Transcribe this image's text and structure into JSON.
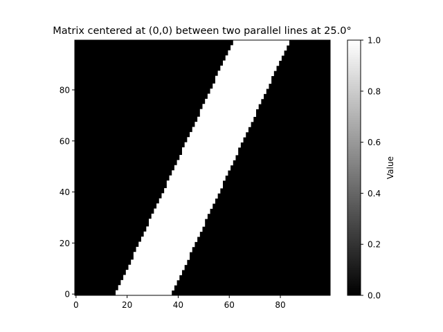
{
  "chart_data": {
    "type": "heatmap",
    "title": "Matrix centered at (0,0) between two parallel lines at 25.0°",
    "xlabel": "",
    "ylabel": "",
    "colorbar_label": "Value",
    "colormap": "gray",
    "colormap_low": "#000000",
    "colormap_high": "#ffffff",
    "grid": false,
    "origin": "lower",
    "rows": 100,
    "cols": 100,
    "xlim": [
      0,
      99
    ],
    "ylim": [
      0,
      99
    ],
    "vmin": 0.0,
    "vmax": 1.0,
    "band": {
      "value_inside": 1.0,
      "value_outside": 0.0,
      "angle_deg": 25.0,
      "left_edge_x_at_row_0": 16,
      "right_edge_x_at_row_0": 38,
      "left_edge_x_at_row_99": 62,
      "right_edge_x_at_row_99": 84
    },
    "x_ticks": [
      0,
      20,
      40,
      60,
      80
    ],
    "y_ticks": [
      0,
      20,
      40,
      60,
      80
    ],
    "x_tick_labels": [
      "0",
      "20",
      "40",
      "60",
      "80"
    ],
    "y_tick_labels": [
      "0",
      "20",
      "40",
      "60",
      "80"
    ],
    "colorbar_ticks": [
      0.0,
      0.2,
      0.4,
      0.6,
      0.8,
      1.0
    ],
    "colorbar_tick_labels": [
      "0.0",
      "0.2",
      "0.4",
      "0.6",
      "0.8",
      "1.0"
    ]
  }
}
